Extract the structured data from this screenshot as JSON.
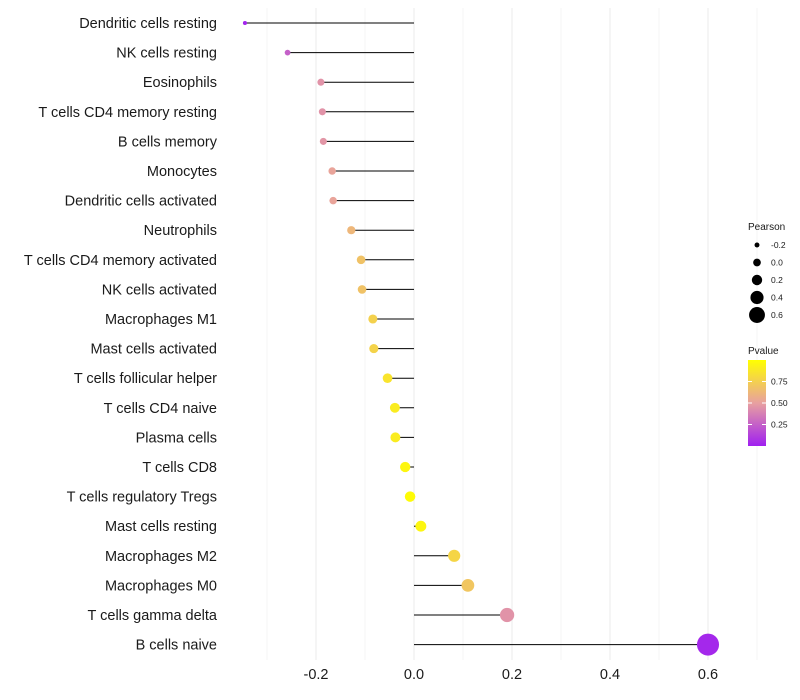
{
  "chart_data": {
    "type": "lollipop",
    "title": "",
    "xlabel": "",
    "ylabel": "",
    "xlim": [
      -0.36,
      0.64
    ],
    "xticks": [
      -0.2,
      0.0,
      0.2,
      0.4,
      0.6
    ],
    "xtick_labels": [
      "-0.2",
      "0.0",
      "0.2",
      "0.4",
      "0.6"
    ],
    "grid": true,
    "categories": [
      "Dendritic cells resting",
      "NK cells resting",
      "Eosinophils",
      "T cells CD4 memory resting",
      "B cells memory",
      "Monocytes",
      "Dendritic cells activated",
      "Neutrophils",
      "T cells CD4 memory activated",
      "NK cells activated",
      "Macrophages M1",
      "Mast cells activated",
      "T cells follicular helper",
      "T cells CD4 naive",
      "Plasma cells",
      "T cells CD8",
      "T cells regulatory  Tregs ",
      "Mast cells resting",
      "Macrophages M2",
      "Macrophages M0",
      "T cells gamma delta",
      "B cells naive"
    ],
    "pearson": [
      -0.345,
      -0.258,
      -0.19,
      -0.187,
      -0.185,
      -0.167,
      -0.165,
      -0.128,
      -0.108,
      -0.106,
      -0.084,
      -0.082,
      -0.054,
      -0.039,
      -0.038,
      -0.018,
      -0.008,
      0.014,
      0.082,
      0.11,
      0.19,
      0.6
    ],
    "pvalue": [
      0.02,
      0.25,
      0.45,
      0.45,
      0.46,
      0.52,
      0.52,
      0.62,
      0.68,
      0.68,
      0.76,
      0.77,
      0.86,
      0.9,
      0.9,
      0.95,
      0.98,
      0.95,
      0.78,
      0.7,
      0.45,
      0.03
    ],
    "legend": {
      "size_title": "Pearson",
      "size_values": [
        -0.2,
        0.0,
        0.2,
        0.4,
        0.6
      ],
      "size_labels": [
        "-0.2",
        "0.0",
        "0.2",
        "0.4",
        "0.6"
      ],
      "color_title": "Pvalue",
      "color_ticks": [
        0.75,
        0.5,
        0.25
      ],
      "color_labels": [
        "0.75",
        "0.50",
        "0.25"
      ],
      "placement": "right"
    },
    "colors": {
      "low": "#a020f0",
      "mid": "#e8a0a0",
      "high": "#ffff00",
      "stem": "#000000",
      "grid": "#ebebeb"
    }
  }
}
